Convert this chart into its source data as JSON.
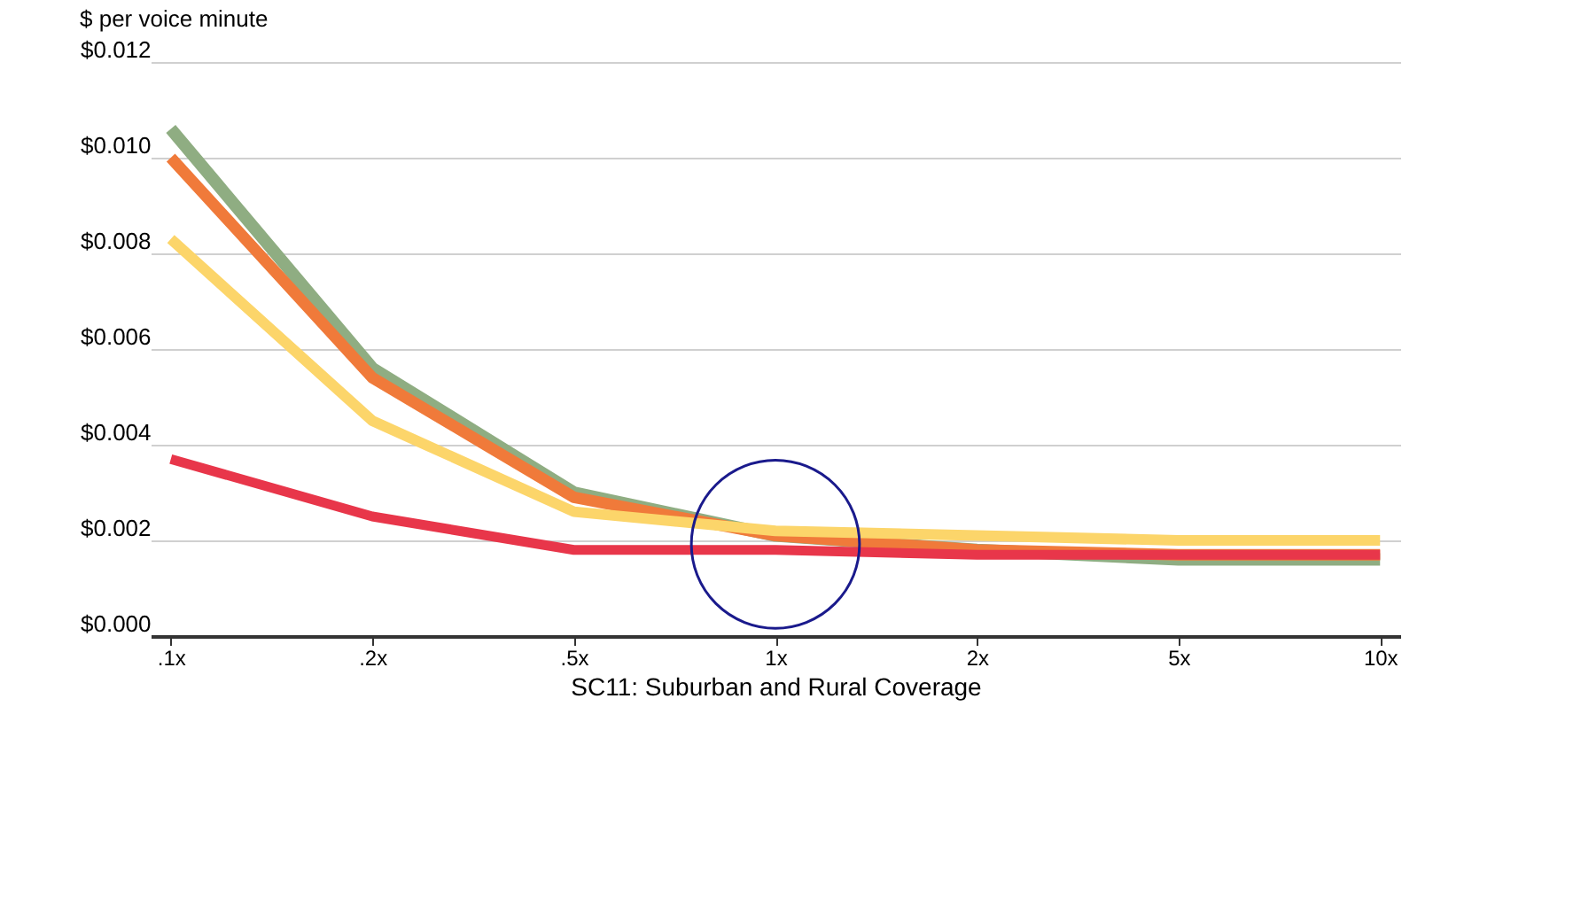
{
  "chart_data": {
    "type": "line",
    "ylabel": "$ per voice minute",
    "xlabel": "SC11: Suburban and Rural Coverage",
    "categories": [
      ".1x",
      ".2x",
      ".5x",
      "1x",
      "2x",
      "5x",
      "10x"
    ],
    "series": [
      {
        "color": "#8fad82",
        "values": [
          0.0106,
          0.0056,
          0.003,
          0.0021,
          0.0018,
          0.0016,
          0.0016
        ]
      },
      {
        "color": "#f07a3a",
        "values": [
          0.01,
          0.0054,
          0.0029,
          0.0021,
          0.0018,
          0.0017,
          0.0017
        ]
      },
      {
        "color": "#fcd56a",
        "values": [
          0.0083,
          0.0045,
          0.0026,
          0.0022,
          0.0021,
          0.002,
          0.002
        ]
      },
      {
        "color": "#e8364a",
        "values": [
          0.0037,
          0.0025,
          0.0018,
          0.0018,
          0.0017,
          0.0017,
          0.0017
        ]
      }
    ],
    "ylim": [
      0,
      0.012
    ],
    "yticks": [
      {
        "value": 0,
        "label": "$0.000"
      },
      {
        "value": 0.002,
        "label": "$0.002"
      },
      {
        "value": 0.004,
        "label": "$0.004"
      },
      {
        "value": 0.006,
        "label": "$0.006"
      },
      {
        "value": 0.008,
        "label": "$0.008"
      },
      {
        "value": 0.01,
        "label": "$0.010"
      },
      {
        "value": 0.012,
        "label": "$0.012"
      }
    ],
    "grid": "y",
    "legend": false,
    "marker": "none",
    "line_style": "solid"
  }
}
